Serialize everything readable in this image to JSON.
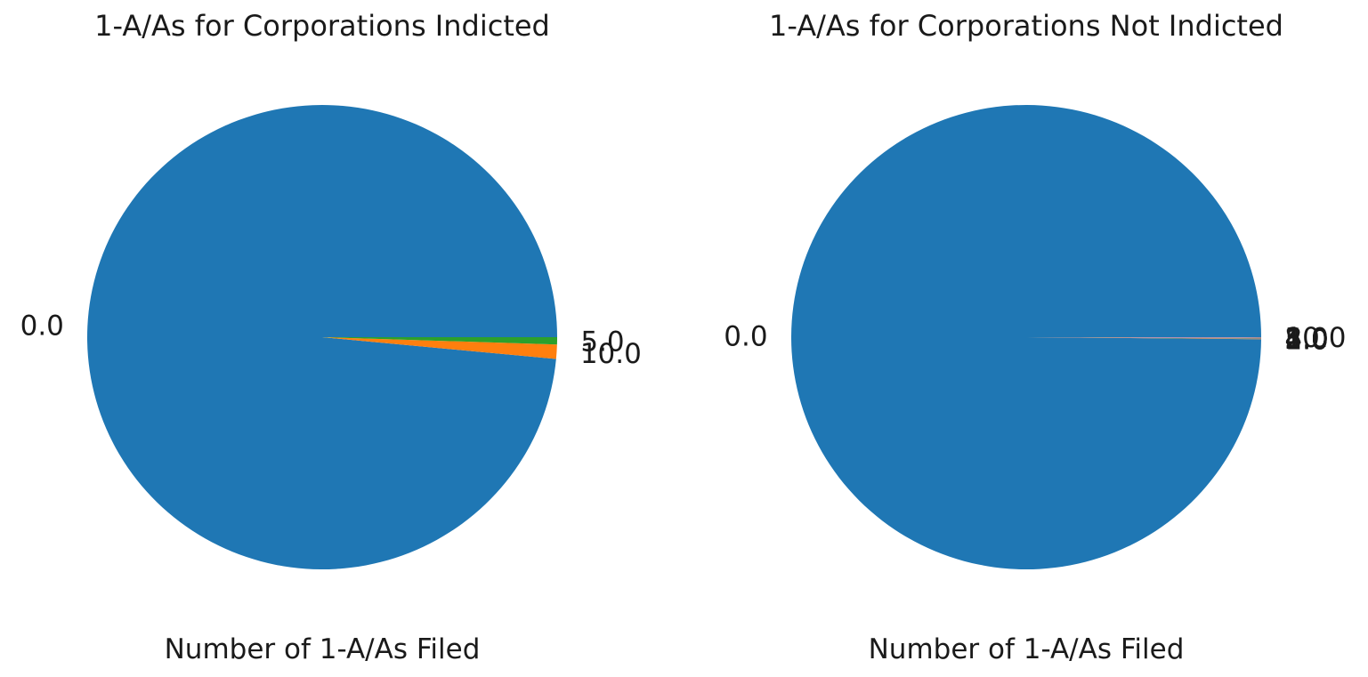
{
  "chart_data": [
    {
      "type": "pie",
      "title": "1-A/As for Corporations Indicted",
      "xlabel": "Number of 1-A/As Filed",
      "slices": [
        {
          "label": "0.0",
          "value": 98.5,
          "color": "#1f77b4"
        },
        {
          "label": "10.0",
          "value": 1.0,
          "color": "#ff7f0e"
        },
        {
          "label": "5.0",
          "value": 0.5,
          "color": "#2ca02c"
        }
      ]
    },
    {
      "type": "pie",
      "title": "1-A/As for Corporations Not Indicted",
      "xlabel": "Number of 1-A/As Filed",
      "slices": [
        {
          "label": "0.0",
          "value": 99.86,
          "color": "#1f77b4"
        },
        {
          "label": "1.0",
          "value": 0.02,
          "color": "#ff7f0e"
        },
        {
          "label": "2.0",
          "value": 0.02,
          "color": "#2ca02c"
        },
        {
          "label": "3.0",
          "value": 0.02,
          "color": "#d62728"
        },
        {
          "label": "4.0",
          "value": 0.02,
          "color": "#9467bd"
        },
        {
          "label": "5.0",
          "value": 0.02,
          "color": "#8c564b"
        },
        {
          "label": "8.0",
          "value": 0.02,
          "color": "#e377c2"
        },
        {
          "label": "10.0",
          "value": 0.02,
          "color": "#7f7f7f"
        }
      ]
    }
  ]
}
